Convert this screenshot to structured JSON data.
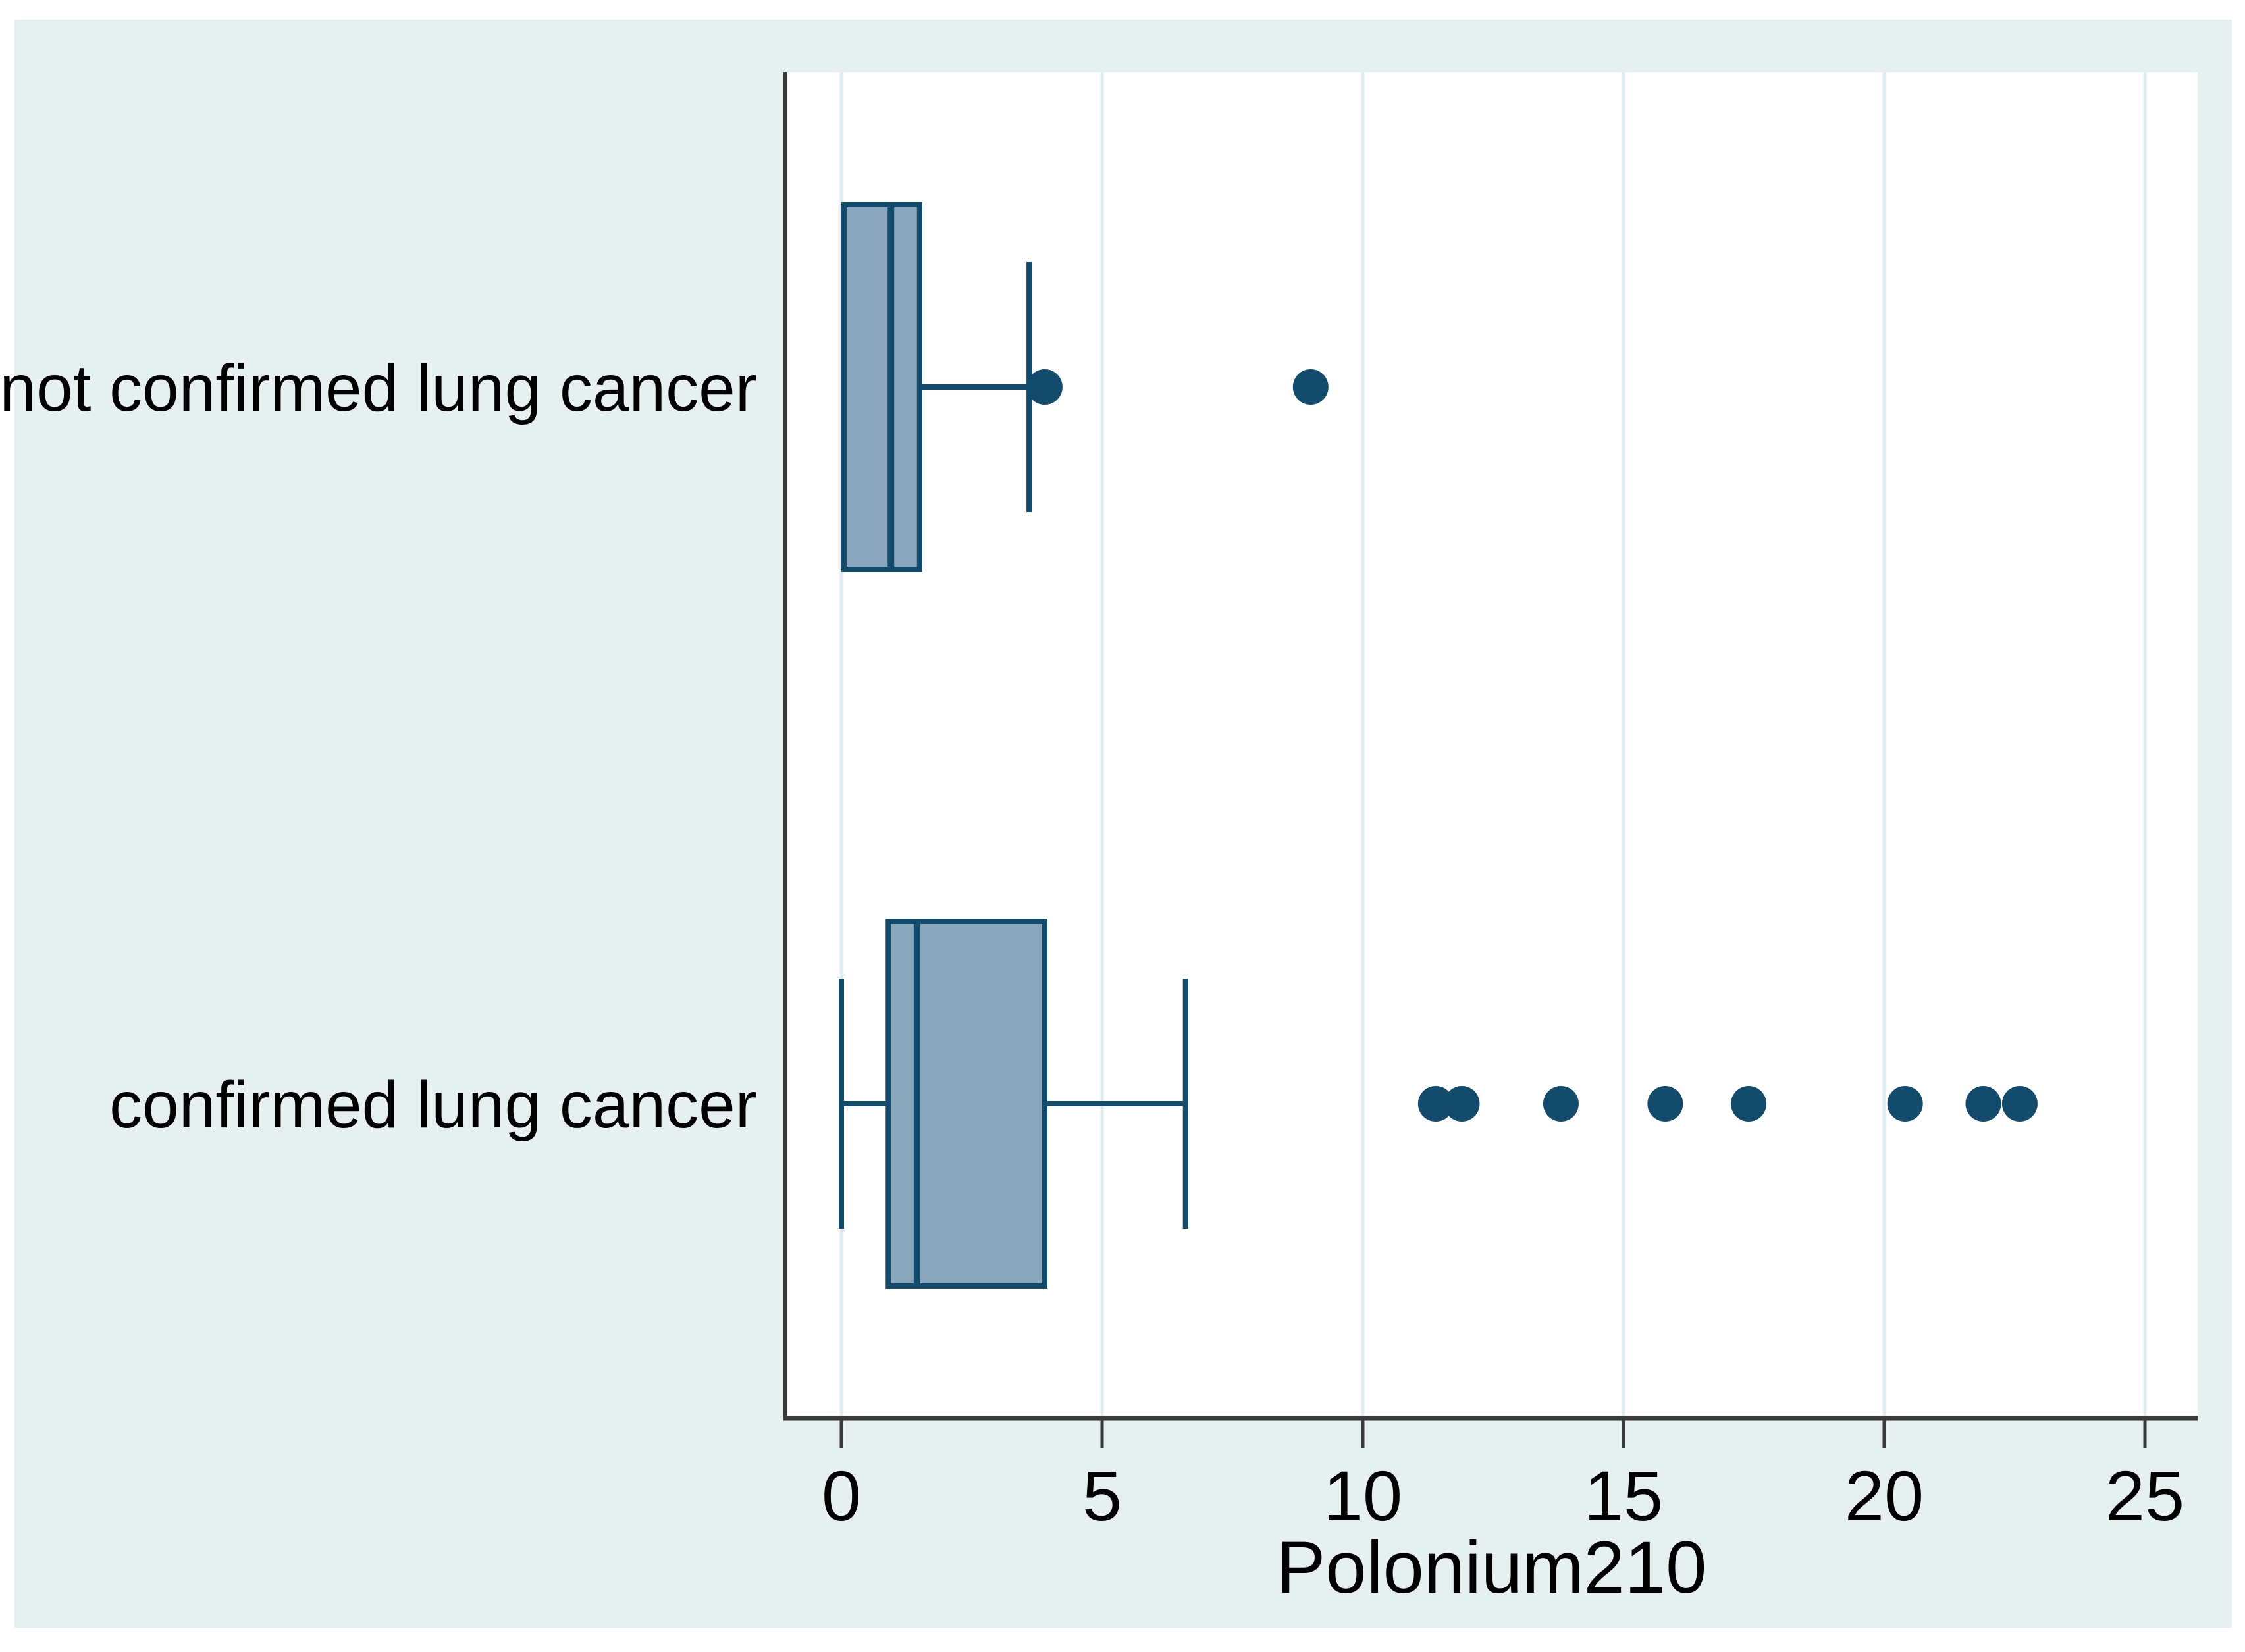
{
  "figure": {
    "background_color": "#ffffff",
    "panel_color": "#e6f0f1"
  },
  "chart_data": {
    "type": "boxplot",
    "orientation": "horizontal",
    "title": "",
    "xlabel": "Polonium210",
    "ylabel": "",
    "xlim": [
      -1,
      26
    ],
    "xticks": [
      0,
      5,
      10,
      15,
      20,
      25
    ],
    "grid": true,
    "legend": false,
    "categories": [
      "not confirmed lung cancer",
      "confirmed lung cancer"
    ],
    "series": [
      {
        "name": "not confirmed lung cancer",
        "q1": 0.05,
        "median": 0.95,
        "q3": 1.5,
        "whisker_low": 0.05,
        "whisker_high": 3.6,
        "outliers": [
          3.9,
          9.0
        ]
      },
      {
        "name": "confirmed lung cancer",
        "q1": 0.9,
        "median": 1.45,
        "q3": 3.9,
        "whisker_low": 0.0,
        "whisker_high": 6.6,
        "outliers": [
          11.4,
          11.9,
          13.8,
          15.8,
          17.4,
          20.4,
          21.9,
          22.6
        ]
      }
    ],
    "colors": {
      "panel": "#e6f0f1",
      "plot_background": "#ffffff",
      "box_fill": "#8ba7bd",
      "line": "#134b6d",
      "gridline": "#ddedf0",
      "axis": "#3a3a3a",
      "text": "#000000"
    }
  }
}
